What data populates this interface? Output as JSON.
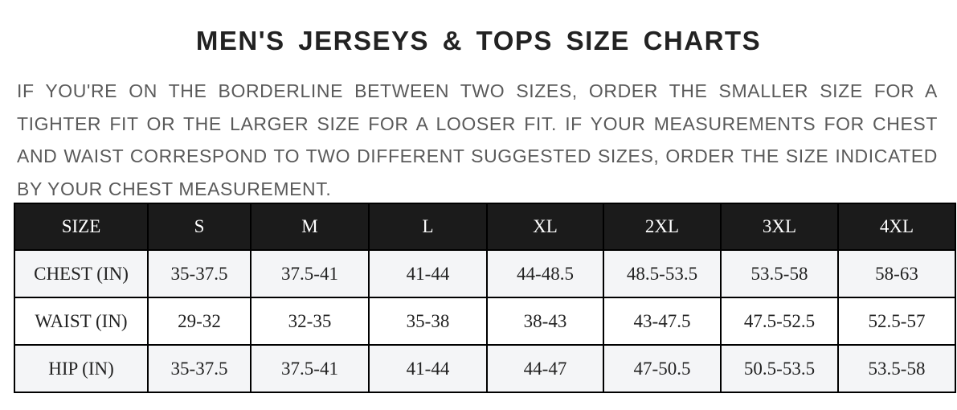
{
  "title": "MEN'S JERSEYS & TOPS SIZE CHARTS",
  "note": "IF YOU'RE ON THE BORDERLINE BETWEEN TWO SIZES, ORDER THE SMALLER SIZE FOR A TIGHTER FIT OR THE LARGER SIZE FOR A LOOSER FIT. IF YOUR MEASUREMENTS FOR CHEST AND WAIST CORRESPOND TO TWO DIFFERENT SUGGESTED SIZES, ORDER THE SIZE INDICATED BY YOUR CHEST MEASUREMENT.",
  "table": {
    "headers": [
      "SIZE",
      "S",
      "M",
      "L",
      "XL",
      "2XL",
      "3XL",
      "4XL"
    ],
    "rows": [
      [
        "CHEST (IN)",
        "35-37.5",
        "37.5-41",
        "41-44",
        "44-48.5",
        "48.5-53.5",
        "53.5-58",
        "58-63"
      ],
      [
        "WAIST (IN)",
        "29-32",
        "32-35",
        "35-38",
        "38-43",
        "43-47.5",
        "47.5-52.5",
        "52.5-57"
      ],
      [
        "HIP (IN)",
        "35-37.5",
        "37.5-41",
        "41-44",
        "44-47",
        "47-50.5",
        "50.5-53.5",
        "53.5-58"
      ]
    ]
  },
  "colors": {
    "header_bg": "#1b1b1b",
    "alt_row_bg": "#f4f5f7",
    "note_text": "#5a5a5a"
  }
}
